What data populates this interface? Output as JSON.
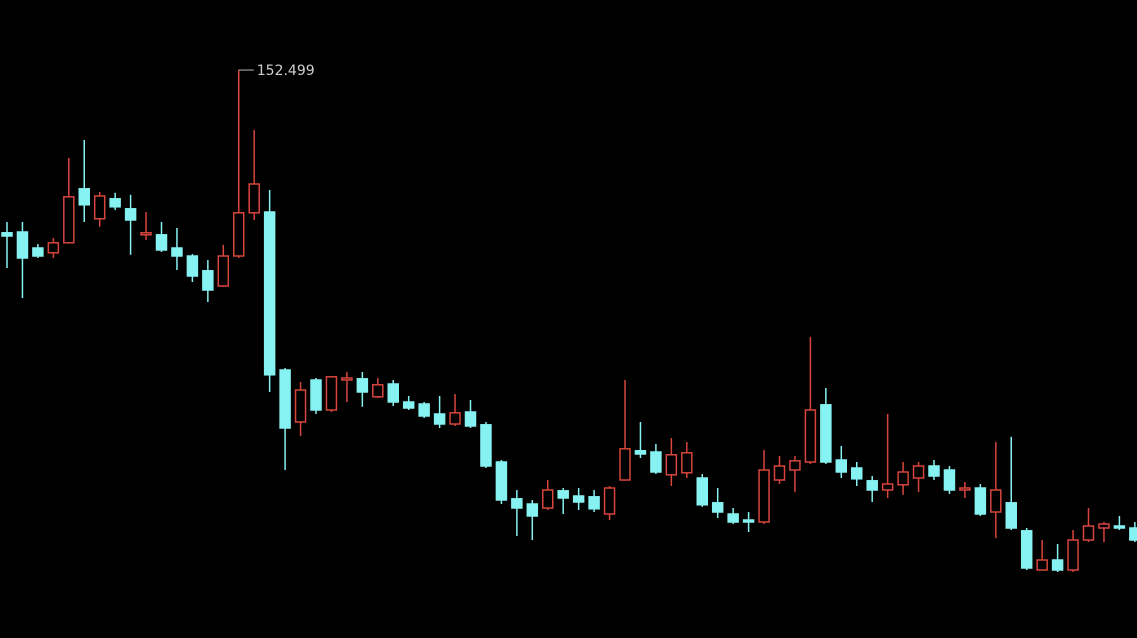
{
  "chart_data": {
    "type": "candlestick",
    "open": [
      148.43,
      148.45,
      148.05,
      147.93,
      148.18,
      149.53,
      148.78,
      149.28,
      149.03,
      148.38,
      148.38,
      148.05,
      147.85,
      147.48,
      147.1,
      147.85,
      148.93,
      148.95,
      145.0,
      143.7,
      144.75,
      144.0,
      144.75,
      144.78,
      144.33,
      144.65,
      144.2,
      144.15,
      143.9,
      143.65,
      143.95,
      143.63,
      142.7,
      141.78,
      141.65,
      141.55,
      141.98,
      141.85,
      141.83,
      141.4,
      142.25,
      142.98,
      142.95,
      142.38,
      142.43,
      142.3,
      141.68,
      141.4,
      141.25,
      141.2,
      142.25,
      142.5,
      142.7,
      144.13,
      142.75,
      142.55,
      142.23,
      142.0,
      142.13,
      142.3,
      142.6,
      142.5,
      142.0,
      142.05,
      141.45,
      141.68,
      140.98,
      140.0,
      140.25,
      140.0,
      140.75,
      141.05,
      141.1,
      141.05
    ],
    "high": [
      148.7,
      148.7,
      148.15,
      148.3,
      150.3,
      150.75,
      149.45,
      149.43,
      149.38,
      148.95,
      148.7,
      148.55,
      147.9,
      147.75,
      148.13,
      152.499,
      151.0,
      149.5,
      145.05,
      144.7,
      144.8,
      144.85,
      144.95,
      144.95,
      144.8,
      144.75,
      144.35,
      144.2,
      144.35,
      144.4,
      144.25,
      143.7,
      142.75,
      142.0,
      141.75,
      142.25,
      142.05,
      142.05,
      142.0,
      142.1,
      144.75,
      143.7,
      143.15,
      143.3,
      143.2,
      142.4,
      142.05,
      141.55,
      141.45,
      143.0,
      142.85,
      142.85,
      145.83,
      144.55,
      143.1,
      142.7,
      142.35,
      143.9,
      142.7,
      142.7,
      142.75,
      142.6,
      142.2,
      142.15,
      143.2,
      143.33,
      141.05,
      140.75,
      140.65,
      141.0,
      141.55,
      141.2,
      141.35,
      141.2
    ],
    "low": [
      147.55,
      146.8,
      147.8,
      147.8,
      148.18,
      148.7,
      148.58,
      149.0,
      147.88,
      148.25,
      147.95,
      147.5,
      147.2,
      146.7,
      147.08,
      147.8,
      148.75,
      144.45,
      142.5,
      143.35,
      143.9,
      143.95,
      144.2,
      144.08,
      144.3,
      144.1,
      144.0,
      143.8,
      143.55,
      143.6,
      143.55,
      142.55,
      141.65,
      140.85,
      140.75,
      141.5,
      141.4,
      141.5,
      141.45,
      141.25,
      142.23,
      142.8,
      142.4,
      142.1,
      142.3,
      141.58,
      141.3,
      141.15,
      140.95,
      141.15,
      142.15,
      141.95,
      142.65,
      142.65,
      142.3,
      142.1,
      141.7,
      141.8,
      141.88,
      141.95,
      142.25,
      141.9,
      141.8,
      141.35,
      140.8,
      141.0,
      140.0,
      140.0,
      139.95,
      139.95,
      140.7,
      140.7,
      141.0,
      140.7
    ],
    "close": [
      148.35,
      147.8,
      147.85,
      148.18,
      149.33,
      149.13,
      149.35,
      149.08,
      148.75,
      148.43,
      148.0,
      147.85,
      147.35,
      147.0,
      147.85,
      148.93,
      149.65,
      144.88,
      143.55,
      144.5,
      144.0,
      144.83,
      144.8,
      144.45,
      144.63,
      144.2,
      144.05,
      143.85,
      143.65,
      143.93,
      143.6,
      142.6,
      141.75,
      141.55,
      141.35,
      142.0,
      141.8,
      141.7,
      141.53,
      142.05,
      143.03,
      142.9,
      142.45,
      142.88,
      142.93,
      141.63,
      141.45,
      141.2,
      141.2,
      142.5,
      142.6,
      142.73,
      144.0,
      142.7,
      142.45,
      142.28,
      142.0,
      142.15,
      142.45,
      142.6,
      142.35,
      142.0,
      142.05,
      141.4,
      142.0,
      141.05,
      140.05,
      140.25,
      140.0,
      140.75,
      141.1,
      141.15,
      141.05,
      140.75
    ],
    "up_color": "#d8453d",
    "down_color": "#86f2f2",
    "background": "#000000",
    "ylim": [
      138.3,
      154.25
    ],
    "label_high": true
  }
}
